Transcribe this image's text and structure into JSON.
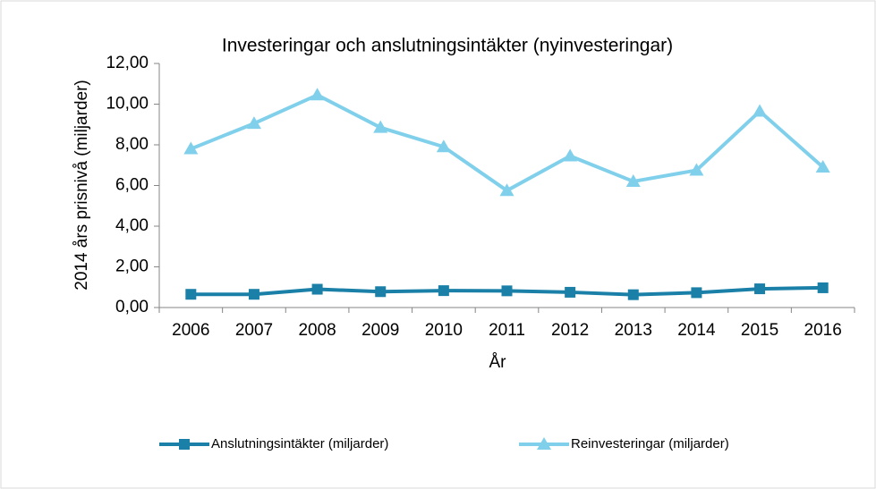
{
  "chart_data": {
    "type": "line",
    "title": "Investeringar och anslutningsintäkter (nyinvesteringar)",
    "x_label": "År",
    "y_label": "2014 års prisnivå (miljarder)",
    "categories": [
      "2006",
      "2007",
      "2008",
      "2009",
      "2010",
      "2011",
      "2012",
      "2013",
      "2014",
      "2015",
      "2016"
    ],
    "series": [
      {
        "name": "Anslutningsintäkter (miljarder)",
        "color": "#1a80a8",
        "marker": "square",
        "values": [
          0.65,
          0.65,
          0.9,
          0.78,
          0.83,
          0.82,
          0.75,
          0.63,
          0.73,
          0.92,
          0.97
        ]
      },
      {
        "name": "Reinvesteringar (miljarder)",
        "color": "#80d0ec",
        "marker": "triangle",
        "values": [
          7.8,
          9.05,
          10.45,
          8.85,
          7.9,
          5.75,
          7.45,
          6.2,
          6.75,
          9.65,
          6.9
        ]
      }
    ],
    "ylim": [
      0,
      12
    ],
    "yticks": [
      {
        "value": 0,
        "label": "0,00"
      },
      {
        "value": 2,
        "label": "2,00"
      },
      {
        "value": 4,
        "label": "4,00"
      },
      {
        "value": 6,
        "label": "6,00"
      },
      {
        "value": 8,
        "label": "8,00"
      },
      {
        "value": 10,
        "label": "10,00"
      },
      {
        "value": 12,
        "label": "12,00"
      }
    ],
    "grid": false,
    "legend": "bottom"
  }
}
